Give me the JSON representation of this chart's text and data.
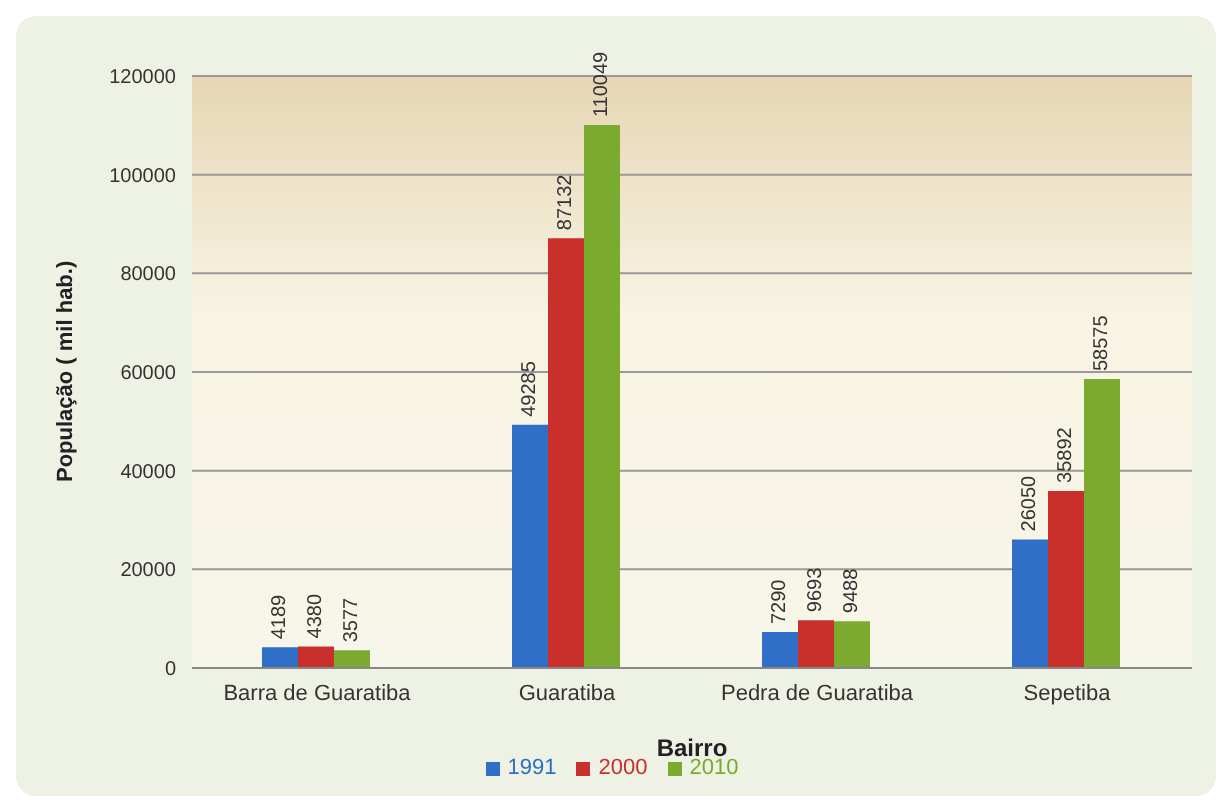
{
  "chart_data": {
    "type": "bar",
    "xlabel": "Bairro",
    "ylabel": "População ( mil hab.)",
    "categories": [
      "Barra de Guaratiba",
      "Guaratiba",
      "Pedra de Guaratiba",
      "Sepetiba"
    ],
    "series": [
      {
        "name": "1991",
        "color": "#2f6fc7",
        "values": [
          4189,
          49285,
          7290,
          26050
        ]
      },
      {
        "name": "2000",
        "color": "#c9302c",
        "values": [
          4380,
          87132,
          9693,
          35892
        ]
      },
      {
        "name": "2010",
        "color": "#7aab2e",
        "values": [
          3577,
          110049,
          9488,
          58575
        ]
      }
    ],
    "ylim": [
      0,
      120000
    ],
    "yticks": [
      0,
      20000,
      40000,
      60000,
      80000,
      100000,
      120000
    ],
    "grid": "y",
    "legend": "bottom",
    "data_labels": true
  }
}
